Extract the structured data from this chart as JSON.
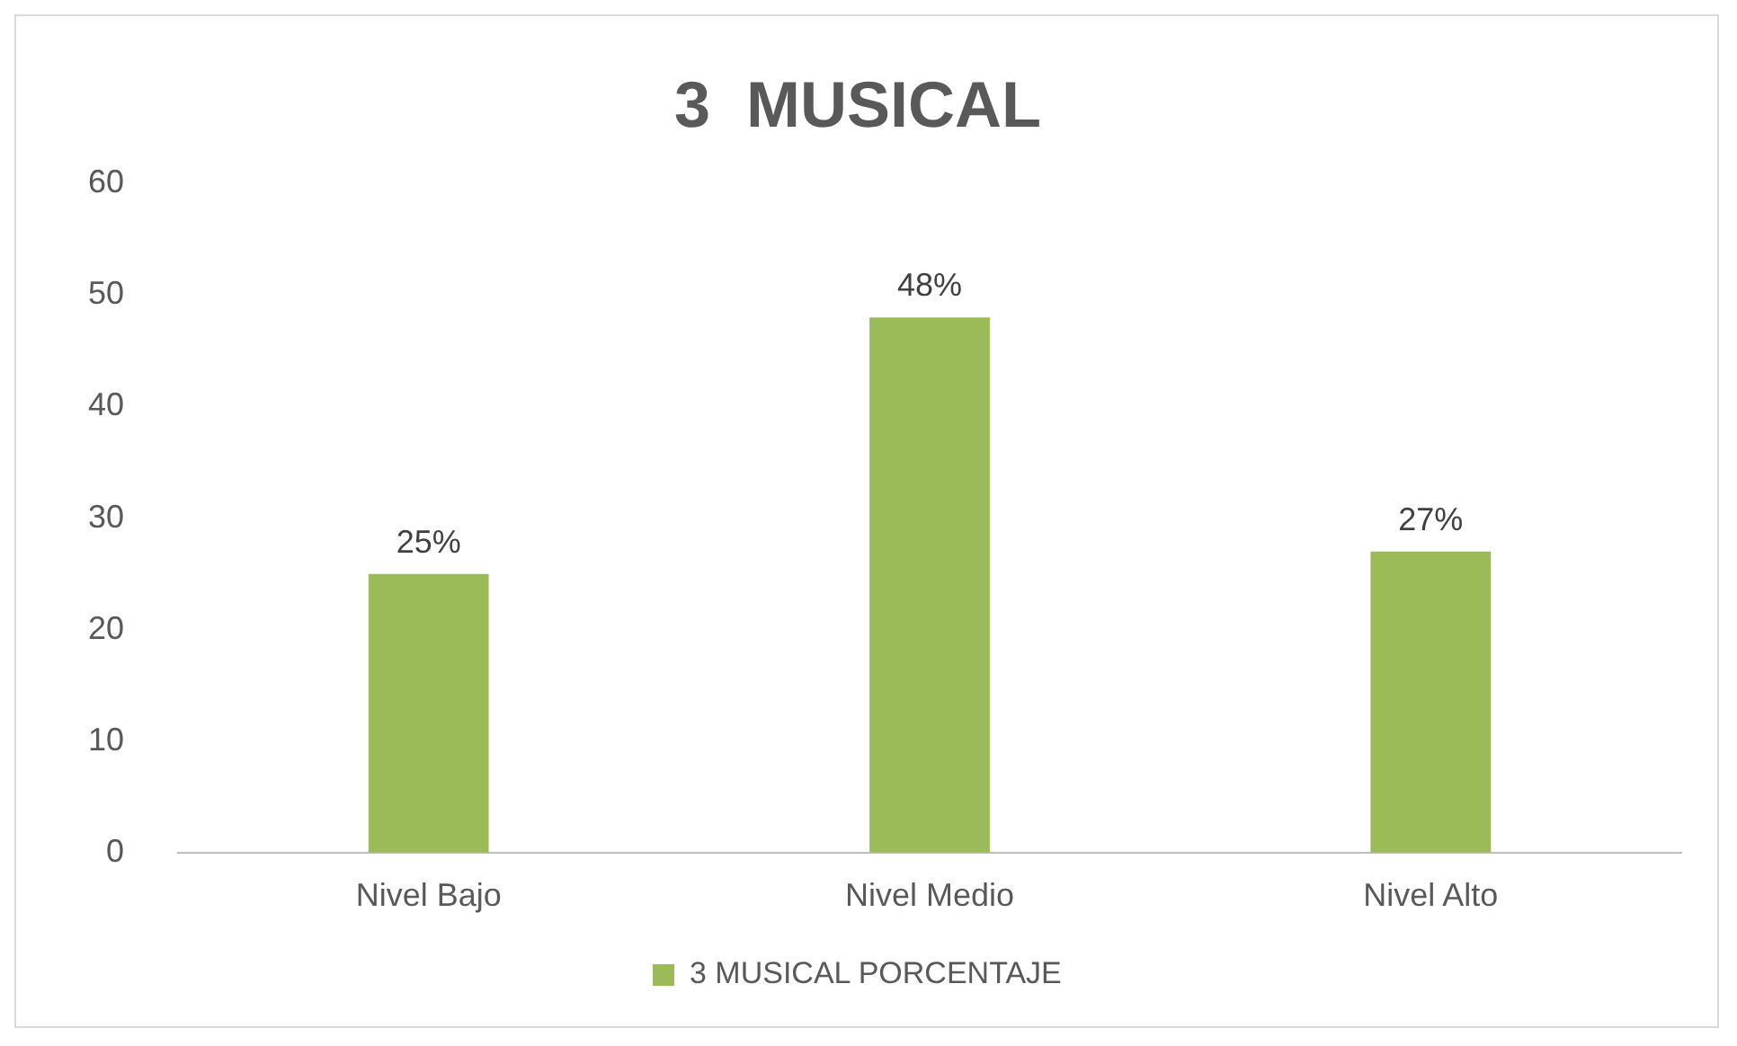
{
  "chart_data": {
    "type": "bar",
    "title": "3  MUSICAL",
    "categories": [
      "Nivel Bajo",
      "Nivel Medio",
      "Nivel Alto"
    ],
    "series": [
      {
        "name": "3 MUSICAL PORCENTAJE",
        "color": "#9bbb59",
        "values": [
          25,
          48,
          27
        ],
        "value_labels": [
          "25%",
          "48%",
          "27%"
        ]
      }
    ],
    "ylim": [
      0,
      60
    ],
    "yticks": [
      0,
      10,
      20,
      30,
      40,
      50,
      60
    ],
    "grid": false,
    "legend": "bottom"
  }
}
